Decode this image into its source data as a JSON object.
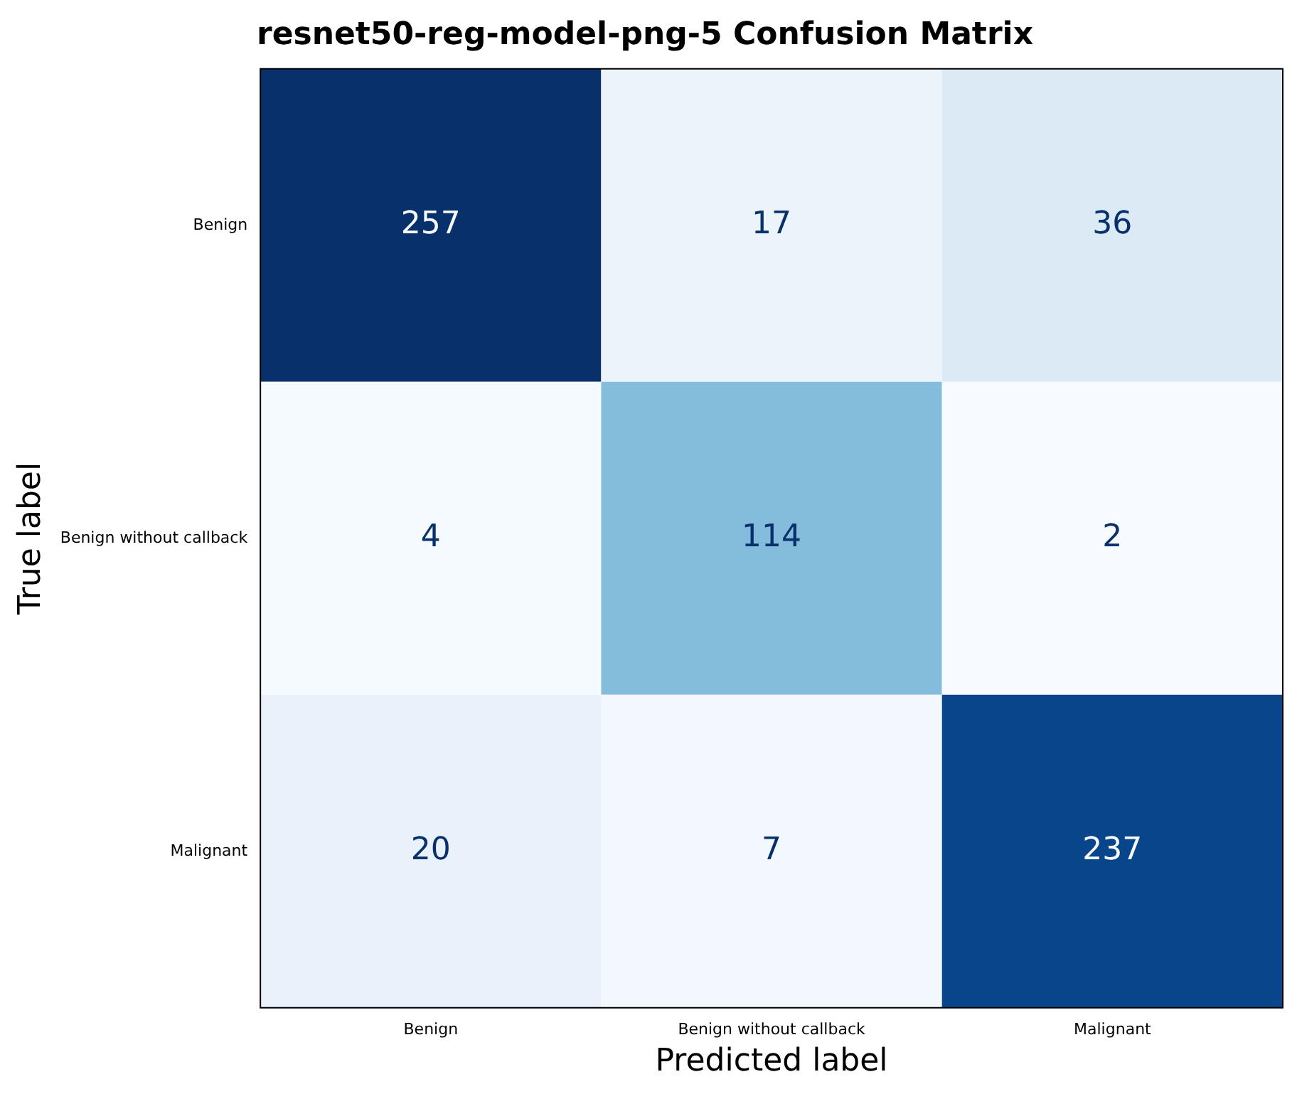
{
  "chart_data": {
    "type": "heatmap",
    "title": "resnet50-reg-model-png-5 Confusion Matrix",
    "xlabel": "Predicted label",
    "ylabel": "True label",
    "categories": [
      "Benign",
      "Benign without callback",
      "Malignant"
    ],
    "y_categories": [
      "Benign",
      "Benign without callback",
      "Malignant"
    ],
    "cells": [
      [
        257,
        17,
        36
      ],
      [
        4,
        114,
        2
      ],
      [
        20,
        7,
        237
      ]
    ],
    "data_labels": true,
    "grid": false
  }
}
